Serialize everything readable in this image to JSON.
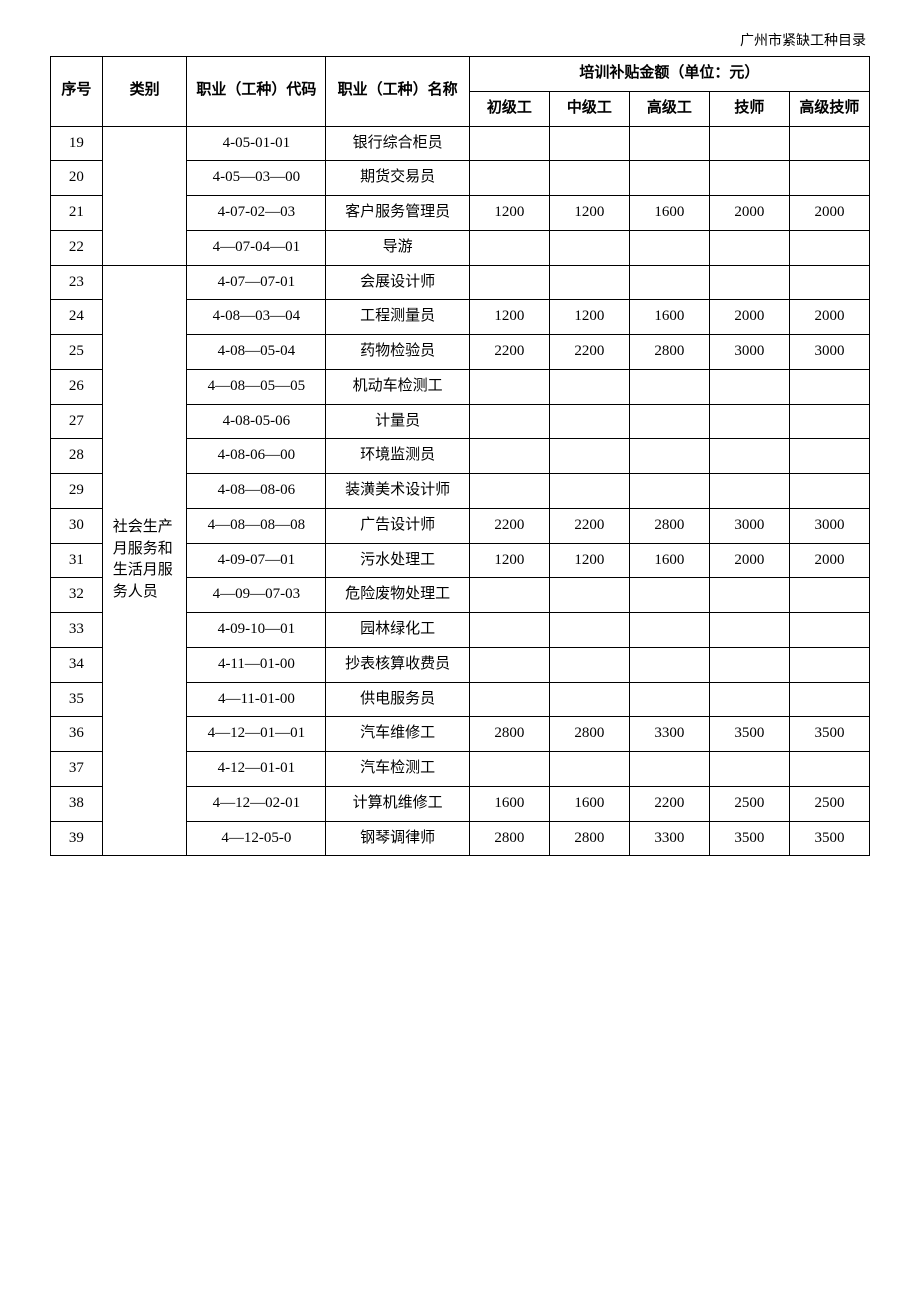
{
  "header_note": "广州市紧缺工种目录",
  "headers": {
    "seq": "序号",
    "category": "类别",
    "code": "职业（工种）代码",
    "name": "职业（工种）名称",
    "subsidy_group": "培训补贴金额（单位：元）",
    "lvl1": "初级工",
    "lvl2": "中级工",
    "lvl3": "高级工",
    "lvl4": "技师",
    "lvl5": "高级技师"
  },
  "category_group1": "",
  "category_group2": "社会生产月服务和生活月服务人员",
  "rows": [
    {
      "seq": "19",
      "code": "4-05-01-01",
      "name": "银行综合柜员",
      "v": [
        "",
        "",
        "",
        "",
        ""
      ]
    },
    {
      "seq": "20",
      "code": "4-05—03—00",
      "name": "期货交易员",
      "v": [
        "",
        "",
        "",
        "",
        ""
      ]
    },
    {
      "seq": "21",
      "code": "4-07-02—03",
      "name": "客户服务管理员",
      "v": [
        "1200",
        "1200",
        "1600",
        "2000",
        "2000"
      ]
    },
    {
      "seq": "22",
      "code": "4—07-04—01",
      "name": "导游",
      "v": [
        "",
        "",
        "",
        "",
        ""
      ]
    },
    {
      "seq": "23",
      "code": "4-07—07-01",
      "name": "会展设计师",
      "v": [
        "",
        "",
        "",
        "",
        ""
      ]
    },
    {
      "seq": "24",
      "code": "4-08—03—04",
      "name": "工程测量员",
      "v": [
        "1200",
        "1200",
        "1600",
        "2000",
        "2000"
      ]
    },
    {
      "seq": "25",
      "code": "4-08—05-04",
      "name": "药物检验员",
      "v": [
        "2200",
        "2200",
        "2800",
        "3000",
        "3000"
      ]
    },
    {
      "seq": "26",
      "code": "4—08—05—05",
      "name": "机动车检测工",
      "v": [
        "",
        "",
        "",
        "",
        ""
      ]
    },
    {
      "seq": "27",
      "code": "4-08-05-06",
      "name": "计量员",
      "v": [
        "",
        "",
        "",
        "",
        ""
      ]
    },
    {
      "seq": "28",
      "code": "4-08-06—00",
      "name": "环境监测员",
      "v": [
        "",
        "",
        "",
        "",
        ""
      ]
    },
    {
      "seq": "29",
      "code": "4-08—08-06",
      "name": "装潢美术设计师",
      "v": [
        "",
        "",
        "",
        "",
        ""
      ]
    },
    {
      "seq": "30",
      "code": "4—08—08—08",
      "name": "广告设计师",
      "v": [
        "2200",
        "2200",
        "2800",
        "3000",
        "3000"
      ]
    },
    {
      "seq": "31",
      "code": "4-09-07—01",
      "name": "污水处理工",
      "v": [
        "1200",
        "1200",
        "1600",
        "2000",
        "2000"
      ]
    },
    {
      "seq": "32",
      "code": "4—09—07-03",
      "name": "危险废物处理工",
      "v": [
        "",
        "",
        "",
        "",
        ""
      ]
    },
    {
      "seq": "33",
      "code": "4-09-10—01",
      "name": "园林绿化工",
      "v": [
        "",
        "",
        "",
        "",
        ""
      ]
    },
    {
      "seq": "34",
      "code": "4-11—01-00",
      "name": "抄表核算收费员",
      "v": [
        "",
        "",
        "",
        "",
        ""
      ]
    },
    {
      "seq": "35",
      "code": "4—11-01-00",
      "name": "供电服务员",
      "v": [
        "",
        "",
        "",
        "",
        ""
      ]
    },
    {
      "seq": "36",
      "code": "4—12—01—01",
      "name": "汽车维修工",
      "v": [
        "2800",
        "2800",
        "3300",
        "3500",
        "3500"
      ]
    },
    {
      "seq": "37",
      "code": "4-12—01-01",
      "name": "汽车检测工",
      "v": [
        "",
        "",
        "",
        "",
        ""
      ]
    },
    {
      "seq": "38",
      "code": "4—12—02-01",
      "name": "计算机维修工",
      "v": [
        "1600",
        "1600",
        "2200",
        "2500",
        "2500"
      ]
    },
    {
      "seq": "39",
      "code": "4—12-05-0",
      "name": "钢琴调律师",
      "v": [
        "2800",
        "2800",
        "3300",
        "3500",
        "3500"
      ]
    }
  ],
  "style": {
    "font_family": "SimSun",
    "font_size_pt": 11,
    "text_color": "#000000",
    "border_color": "#000000",
    "background": "#ffffff"
  }
}
